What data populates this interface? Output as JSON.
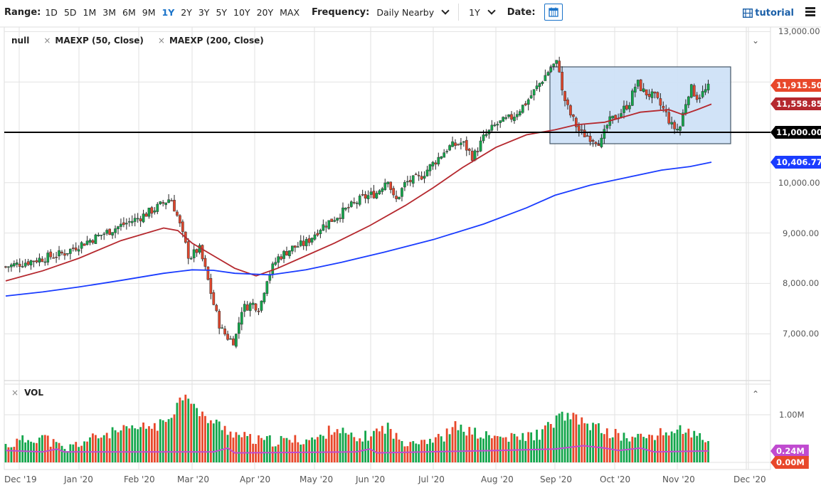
{
  "toolbar": {
    "range_label": "Range:",
    "ranges": [
      "1D",
      "5D",
      "1M",
      "3M",
      "6M",
      "9M",
      "1Y",
      "2Y",
      "3Y",
      "5Y",
      "10Y",
      "20Y",
      "MAX"
    ],
    "active_range": "1Y",
    "frequency_label": "Frequency:",
    "frequency_value": "Daily Nearby",
    "period_value": "1Y",
    "date_label": "Date:",
    "tutorial_label": "tutorial"
  },
  "legend": {
    "symbol": "null",
    "studies": [
      "MAEXP (50, Close)",
      "MAEXP (200, Close)"
    ]
  },
  "volume_legend": {
    "label": "VOL"
  },
  "price_tags": [
    {
      "label": "11,915.50",
      "value": 11915.5,
      "color": "#e8472a"
    },
    {
      "label": "11,558.85",
      "value": 11558.85,
      "color": "#b5282e"
    },
    {
      "label": "11,000.00",
      "value": 11000,
      "color": "#000000"
    },
    {
      "label": "10,406.77",
      "value": 10406.77,
      "color": "#1a3cff"
    }
  ],
  "volume_tags": [
    {
      "label": "0.24M",
      "color": "#c04bd0"
    },
    {
      "label": "0.00M",
      "color": "#e8472a"
    }
  ],
  "chart_data": [
    {
      "type": "candlestick",
      "title": "",
      "xlabel": "",
      "ylabel": "",
      "ylim": [
        6300,
        13000
      ],
      "y_ticks": [
        "13,000.00",
        "12,000.00",
        "11,000.00",
        "10,000.00",
        "9,000.00",
        "8,000.00",
        "7,000.00"
      ],
      "y_tick_values": [
        13000,
        12000,
        11000,
        10000,
        9000,
        8000,
        7000
      ],
      "x_ticks": [
        "Dec '19",
        "Jan '20",
        "Feb '20",
        "Mar '20",
        "Apr '20",
        "May '20",
        "Jun '20",
        "Jul '20",
        "Aug '20",
        "Sep '20",
        "Oct '20",
        "Nov '20",
        "Dec '20"
      ],
      "close_series_monthly_approx": {
        "x": [
          "Dec '19",
          "Jan '20",
          "Feb '20",
          "Mar '20",
          "Apr '20",
          "May '20",
          "Jun '20",
          "Jul '20",
          "Aug '20",
          "Sep '20",
          "Oct '20",
          "Nov '20",
          "mid Nov '20"
        ],
        "values": [
          8300,
          8800,
          9250,
          8700,
          8100,
          8900,
          9500,
          10500,
          11000,
          11600,
          11500,
          11000,
          11915.5
        ]
      },
      "annotations": [
        {
          "type": "hline",
          "value": 11000,
          "label": "11,000.00",
          "color": "#000000"
        },
        {
          "type": "rectangle",
          "from": "Aug 31 '20",
          "to": "Nov 20 '20",
          "y_top": 12300,
          "y_bottom": 10800,
          "fill": "#cfe2f7"
        }
      ],
      "series": [
        {
          "name": "MAEXP (50, Close)",
          "color": "#b5282e",
          "last": 11558.85
        },
        {
          "name": "MAEXP (200, Close)",
          "color": "#1a3cff",
          "last": 10406.77
        }
      ],
      "last_close": 11915.5,
      "high_marker": 12440,
      "low_marker": 6630
    },
    {
      "type": "bar",
      "title": "VOL",
      "ylim": [
        0,
        1400000
      ],
      "y_ticks": [
        "1.00M"
      ],
      "series": [
        {
          "name": "VOL",
          "colors": {
            "up": "#13a64b",
            "down": "#e8472a"
          }
        },
        {
          "name": "VOL MA",
          "color": "#c04bd0",
          "last": "0.24M"
        }
      ],
      "peak_month": "Mar '20",
      "peak_value_approx": 1450000,
      "last_value": "0.00M"
    }
  ]
}
